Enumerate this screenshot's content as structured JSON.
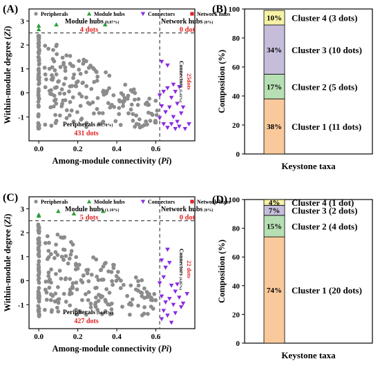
{
  "colors": {
    "peripheral": "#8c8c8c",
    "module_hub": "#2e9e3a",
    "connector": "#8a2be2",
    "network_hub": "#e02020",
    "count_red": "#e02020",
    "c1": "#f9c99b",
    "c2": "#b6dfb3",
    "c3": "#c6bddb",
    "c4": "#f7f2a5"
  },
  "chart_data": [
    {
      "panel": "(A)",
      "type": "scatter",
      "xlabel": "Among-module connectivity (Pi)",
      "xlabel_main": "Among-module connectivity (",
      "xlabel_var": "Pi",
      "xlabel_close": ")",
      "ylabel": "Within-module degree (Zi)",
      "ylabel_main": "Within-module degree (",
      "ylabel_var": "Zi",
      "ylabel_close": ")",
      "xlim": [
        -0.05,
        0.8
      ],
      "ylim": [
        -2.0,
        3.5
      ],
      "xticks": [
        "0.0",
        "0.2",
        "0.4",
        "0.6"
      ],
      "yticks": [
        "-1",
        "0",
        "1",
        "2",
        "3"
      ],
      "thresholds": {
        "x": 0.62,
        "y": 2.5
      },
      "legend": [
        "Peripherals",
        "Module hubs",
        "Connectors",
        "Network hubs"
      ],
      "annotations": {
        "module_hubs": {
          "label": "Module hubs",
          "pct": "(0.87%)",
          "count": "4 dots"
        },
        "network_hubs": {
          "label": "Network hubs",
          "pct": "(0%)",
          "count": "0 dot"
        },
        "connectors": {
          "label": "Connectors",
          "pct": "(5.43%)",
          "count": "25dots"
        },
        "peripherals": {
          "label": "Peripherals",
          "pct": "(93.70%)",
          "count": "431 dots"
        }
      },
      "module_hubs": [
        [
          0.0,
          2.65
        ],
        [
          0.0,
          2.8
        ],
        [
          0.09,
          2.85
        ],
        [
          0.34,
          2.85
        ]
      ],
      "connectors": [
        [
          0.63,
          1.3
        ],
        [
          0.66,
          1.15
        ],
        [
          0.62,
          -0.1
        ],
        [
          0.64,
          0.05
        ],
        [
          0.66,
          0.2
        ],
        [
          0.68,
          -0.2
        ],
        [
          0.69,
          0.35
        ],
        [
          0.7,
          0.05
        ],
        [
          0.71,
          -0.45
        ],
        [
          0.72,
          0.25
        ],
        [
          0.63,
          -0.55
        ],
        [
          0.65,
          -0.8
        ],
        [
          0.67,
          -0.6
        ],
        [
          0.69,
          -1.0
        ],
        [
          0.71,
          -1.2
        ],
        [
          0.73,
          -0.85
        ],
        [
          0.62,
          -1.05
        ],
        [
          0.64,
          -1.3
        ],
        [
          0.66,
          -1.45
        ],
        [
          0.68,
          -1.3
        ],
        [
          0.7,
          -1.5
        ],
        [
          0.72,
          -1.4
        ],
        [
          0.75,
          -1.5
        ],
        [
          0.77,
          -1.3
        ],
        [
          0.74,
          -0.6
        ]
      ],
      "peripheral_seed": 7
    },
    {
      "panel": "(B)",
      "type": "bar",
      "stacked": true,
      "xlabel": "Keystone taxa",
      "ylabel": "Composition (%)",
      "ylim": [
        0,
        100
      ],
      "yticks": [
        "0",
        "20",
        "40",
        "60",
        "80",
        "100"
      ],
      "segments": [
        {
          "name": "Cluster 1 (11 dots)",
          "value": 38,
          "label": "38%"
        },
        {
          "name": "Cluster 2 (5 dots)",
          "value": 17,
          "label": "17%"
        },
        {
          "name": "Cluster 3 (10 dots)",
          "value": 34,
          "label": "34%"
        },
        {
          "name": "Cluster 4 (3 dots)",
          "value": 10,
          "label": "10%"
        }
      ]
    },
    {
      "panel": "(C)",
      "type": "scatter",
      "xlabel": "Among-module connectivity (Pi)",
      "xlabel_main": "Among-module connectivity (",
      "xlabel_var": "Pi",
      "xlabel_close": ")",
      "ylabel": "Within-module degree (Zi)",
      "ylabel_main": "Within-module degree (",
      "ylabel_var": "Zi",
      "ylabel_close": ")",
      "xlim": [
        -0.05,
        0.8
      ],
      "ylim": [
        -2.0,
        3.5
      ],
      "xticks": [
        "0.0",
        "0.2",
        "0.4",
        "0.6"
      ],
      "yticks": [
        "-1",
        "0",
        "1",
        "2",
        "3"
      ],
      "thresholds": {
        "x": 0.62,
        "y": 2.5
      },
      "legend": [
        "Peripherals",
        "Module hubs",
        "Connectors",
        "Network hubs"
      ],
      "annotations": {
        "module_hubs": {
          "label": "Module hubs",
          "pct": "(1.10%)",
          "count": "5 dots"
        },
        "network_hubs": {
          "label": "Network hubs",
          "pct": "(0%)",
          "count": "0 dot"
        },
        "connectors": {
          "label": "Connectors",
          "pct": "(4.85%)",
          "count": "22 dots"
        },
        "peripherals": {
          "label": "Peripherals",
          "pct": "(94.05%)",
          "count": "427 dots"
        }
      },
      "module_hubs": [
        [
          0.0,
          2.75
        ],
        [
          0.1,
          2.9
        ],
        [
          0.18,
          2.8
        ],
        [
          0.33,
          2.9
        ],
        [
          0.0,
          2.7
        ]
      ],
      "connectors": [
        [
          0.66,
          1.3
        ],
        [
          0.63,
          0.85
        ],
        [
          0.65,
          0.55
        ],
        [
          0.67,
          0.75
        ],
        [
          0.62,
          -0.1
        ],
        [
          0.64,
          0.15
        ],
        [
          0.68,
          -0.2
        ],
        [
          0.7,
          -0.45
        ],
        [
          0.63,
          -0.65
        ],
        [
          0.65,
          -0.9
        ],
        [
          0.67,
          -0.75
        ],
        [
          0.69,
          -1.0
        ],
        [
          0.72,
          -0.7
        ],
        [
          0.74,
          -0.95
        ],
        [
          0.76,
          -0.55
        ],
        [
          0.64,
          -1.25
        ],
        [
          0.66,
          -1.45
        ],
        [
          0.68,
          -1.75
        ],
        [
          0.7,
          -1.35
        ],
        [
          0.63,
          -1.6
        ],
        [
          0.71,
          -0.15
        ],
        [
          0.73,
          -1.1
        ]
      ],
      "peripheral_seed": 23
    },
    {
      "panel": "(D)",
      "type": "bar",
      "stacked": true,
      "xlabel": "Keystone taxa",
      "ylabel": "Composition (%)",
      "ylim": [
        0,
        100
      ],
      "yticks": [
        "0",
        "20",
        "40",
        "60",
        "80",
        "100"
      ],
      "segments": [
        {
          "name": "Cluster 1 (20 dots)",
          "value": 74,
          "label": "74%"
        },
        {
          "name": "Cluster 2 (4 dots)",
          "value": 15,
          "label": "15%"
        },
        {
          "name": "Cluster 3 (2 dots)",
          "value": 7,
          "label": "7%"
        },
        {
          "name": "Cluster 4 (1 dot)",
          "value": 4,
          "label": "4%"
        }
      ]
    }
  ]
}
